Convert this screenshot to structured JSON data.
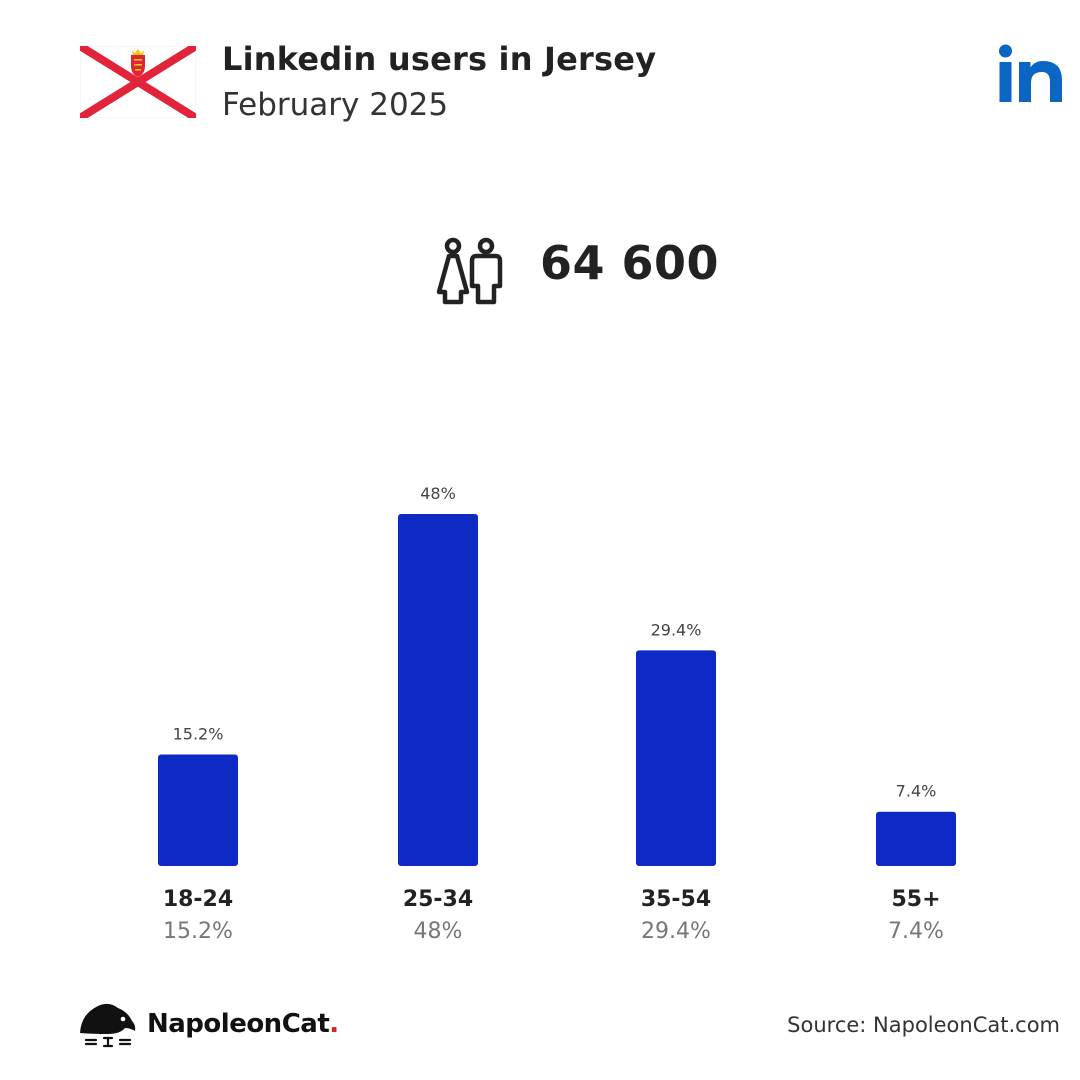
{
  "header": {
    "title": "Linkedin users in Jersey",
    "subtitle": "February 2025"
  },
  "total": {
    "users": "64 600"
  },
  "colors": {
    "bar": "#0f2ac4",
    "linkedin": "#0a66c2",
    "flag_cross": "#e2243b"
  },
  "icons": {
    "flag": "jersey-flag-icon",
    "brand": "linkedin-logo-icon",
    "users": "male-female-users-icon",
    "footer": "napoleoncat-logo-icon"
  },
  "chart_data": {
    "type": "bar",
    "categories": [
      "18-24",
      "25-34",
      "35-54",
      "55+"
    ],
    "values": [
      15.2,
      48,
      29.4,
      7.4
    ],
    "value_labels": [
      "15.2%",
      "48%",
      "29.4%",
      "7.4%"
    ],
    "unit": "%",
    "ylim": [
      0,
      48
    ],
    "grid": false,
    "legend": "none"
  },
  "footer": {
    "brand_name": "NapoleonCat",
    "brand_dot": ".",
    "source": "Source: NapoleonCat.com"
  }
}
